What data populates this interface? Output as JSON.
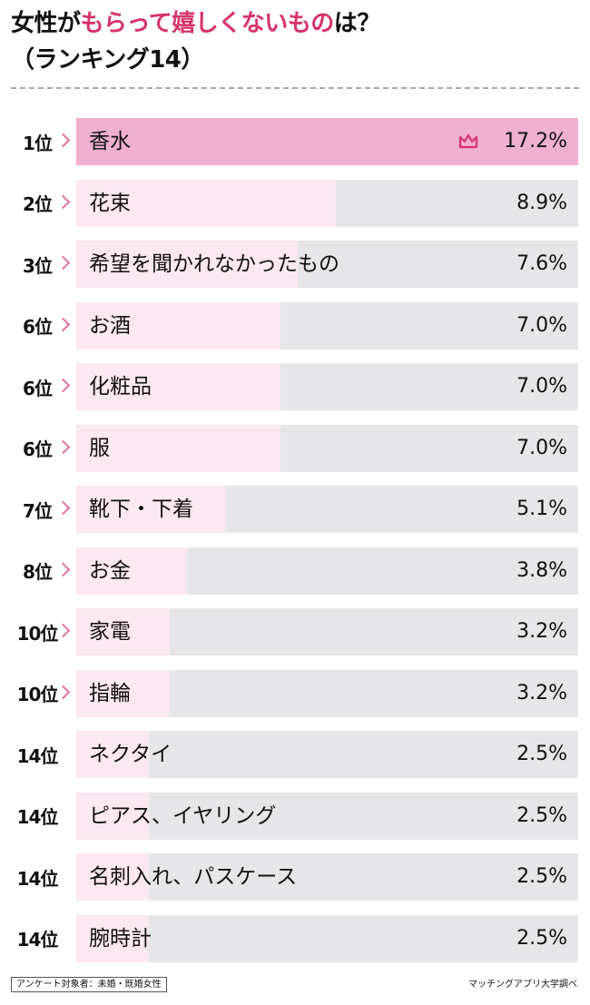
{
  "title": {
    "line1_prefix": "女性が",
    "line1_accent": "もらって嬉しくないもの",
    "line1_suffix": "は？",
    "line2": "（ランキング14）"
  },
  "colors": {
    "top_bar": "#f0b0cf",
    "light_bar": "#fbe8f0",
    "track": "#e6e6e8",
    "accent": "#d6336c",
    "chevron": "#e0739e"
  },
  "chart_data": {
    "type": "bar",
    "orientation": "horizontal",
    "title": "女性がもらって嬉しくないものは？（ランキング14）",
    "unit": "%",
    "xlim": [
      0,
      17.2
    ],
    "rows": [
      {
        "rank": "1位",
        "label": "香水",
        "value": 17.2,
        "value_label": "17.2%",
        "chevron": true,
        "crown": true
      },
      {
        "rank": "2位",
        "label": "花束",
        "value": 8.9,
        "value_label": "8.9%",
        "chevron": true
      },
      {
        "rank": "3位",
        "label": "希望を聞かれなかったもの",
        "value": 7.6,
        "value_label": "7.6%",
        "chevron": true
      },
      {
        "rank": "6位",
        "label": "お酒",
        "value": 7.0,
        "value_label": "7.0%",
        "chevron": true
      },
      {
        "rank": "6位",
        "label": "化粧品",
        "value": 7.0,
        "value_label": "7.0%",
        "chevron": true
      },
      {
        "rank": "6位",
        "label": "服",
        "value": 7.0,
        "value_label": "7.0%",
        "chevron": true
      },
      {
        "rank": "7位",
        "label": "靴下・下着",
        "value": 5.1,
        "value_label": "5.1%",
        "chevron": true
      },
      {
        "rank": "8位",
        "label": "お金",
        "value": 3.8,
        "value_label": "3.8%",
        "chevron": true
      },
      {
        "rank": "10位",
        "label": "家電",
        "value": 3.2,
        "value_label": "3.2%",
        "chevron": true
      },
      {
        "rank": "10位",
        "label": "指輪",
        "value": 3.2,
        "value_label": "3.2%",
        "chevron": true
      },
      {
        "rank": "14位",
        "label": "ネクタイ",
        "value": 2.5,
        "value_label": "2.5%",
        "chevron": false
      },
      {
        "rank": "14位",
        "label": "ピアス、イヤリング",
        "value": 2.5,
        "value_label": "2.5%",
        "chevron": false
      },
      {
        "rank": "14位",
        "label": "名刺入れ、パスケース",
        "value": 2.5,
        "value_label": "2.5%",
        "chevron": false
      },
      {
        "rank": "14位",
        "label": "腕時計",
        "value": 2.5,
        "value_label": "2.5%",
        "chevron": false
      }
    ]
  },
  "footer": {
    "note": "アンケート対象者：未婚・既婚女性",
    "source": "マッチングアプリ大学調べ"
  }
}
